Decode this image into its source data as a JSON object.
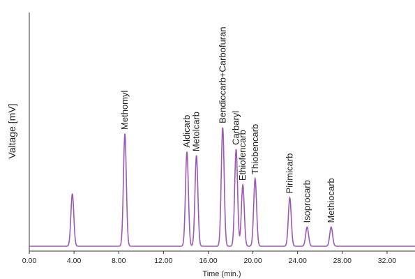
{
  "chart_data": {
    "type": "line",
    "title": "",
    "xlabel": "Time (min.)",
    "ylabel": "Valtage [mV]",
    "xlim": [
      0,
      34.5
    ],
    "ylim": [
      0,
      100
    ],
    "x_ticks": [
      "0.00",
      "4.00",
      "8.00",
      "12.00",
      "16.00",
      "20.00",
      "24.00",
      "28.00",
      "32.00"
    ],
    "grid": false,
    "baseline": 0,
    "series": [
      {
        "color": "#9b59b6",
        "peaks": [
          {
            "label": "",
            "time": 3.85,
            "height": 41
          },
          {
            "label": "Methomyl",
            "time": 8.55,
            "height": 88
          },
          {
            "label": "Aldicarb",
            "time": 14.1,
            "height": 74
          },
          {
            "label": "Metolcarb",
            "time": 14.95,
            "height": 71
          },
          {
            "label": "Bendiocarb+Carbofuran",
            "time": 17.3,
            "height": 93
          },
          {
            "label": "Carbaryl",
            "time": 18.5,
            "height": 76
          },
          {
            "label": "Ethiofencarb",
            "time": 19.1,
            "height": 48
          },
          {
            "label": "Thiobencarb",
            "time": 20.2,
            "height": 53
          },
          {
            "label": "Pirimicarb",
            "time": 23.3,
            "height": 38
          },
          {
            "label": "Isoprocarb",
            "time": 24.85,
            "height": 15
          },
          {
            "label": "Methiocarb",
            "time": 27.0,
            "height": 15
          }
        ]
      }
    ]
  }
}
